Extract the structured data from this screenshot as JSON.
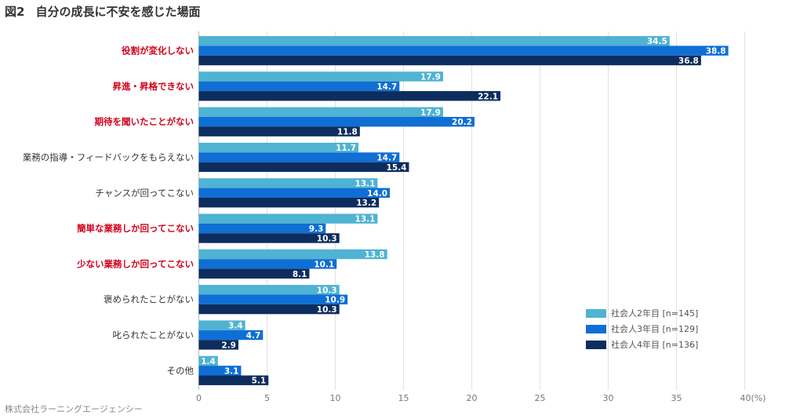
{
  "figure": {
    "number": "図2",
    "title": "自分の成長に不安を感じた場面"
  },
  "source": "株式会社ラーニングエージェンシー",
  "colors": {
    "series": [
      "#4fb3d3",
      "#0f6fd4",
      "#0d2d5e"
    ],
    "highlight_label": "#d0021b",
    "label": "#333333"
  },
  "chart_data": {
    "type": "bar",
    "orientation": "horizontal",
    "categories": [
      "役割が変化しない",
      "昇進・昇格できない",
      "期待を聞いたことがない",
      "業務の指導・フィードバックをもらえない",
      "チャンスが回ってこない",
      "簡単な業務しか回ってこない",
      "少ない業務しか回ってこない",
      "褒められたことがない",
      "叱られたことがない",
      "その他"
    ],
    "highlighted": [
      true,
      true,
      true,
      false,
      false,
      true,
      true,
      false,
      false,
      false
    ],
    "series": [
      {
        "name": "社会人2年目 [n=145]",
        "values": [
          34.5,
          17.9,
          17.9,
          11.7,
          13.1,
          13.1,
          13.8,
          10.3,
          3.4,
          1.4
        ]
      },
      {
        "name": "社会人3年目 [n=129]",
        "values": [
          38.8,
          14.7,
          20.2,
          14.7,
          14.0,
          9.3,
          10.1,
          10.9,
          4.7,
          3.1
        ]
      },
      {
        "name": "社会人4年目 [n=136]",
        "values": [
          36.8,
          22.1,
          11.8,
          15.4,
          13.2,
          10.3,
          8.1,
          10.3,
          2.9,
          5.1
        ]
      }
    ],
    "xlim": [
      0,
      40
    ],
    "xticks": [
      "0",
      "5",
      "10",
      "15",
      "20",
      "25",
      "30",
      "35",
      "40(%)"
    ],
    "grid": true,
    "legend_position": "bottom-right"
  }
}
